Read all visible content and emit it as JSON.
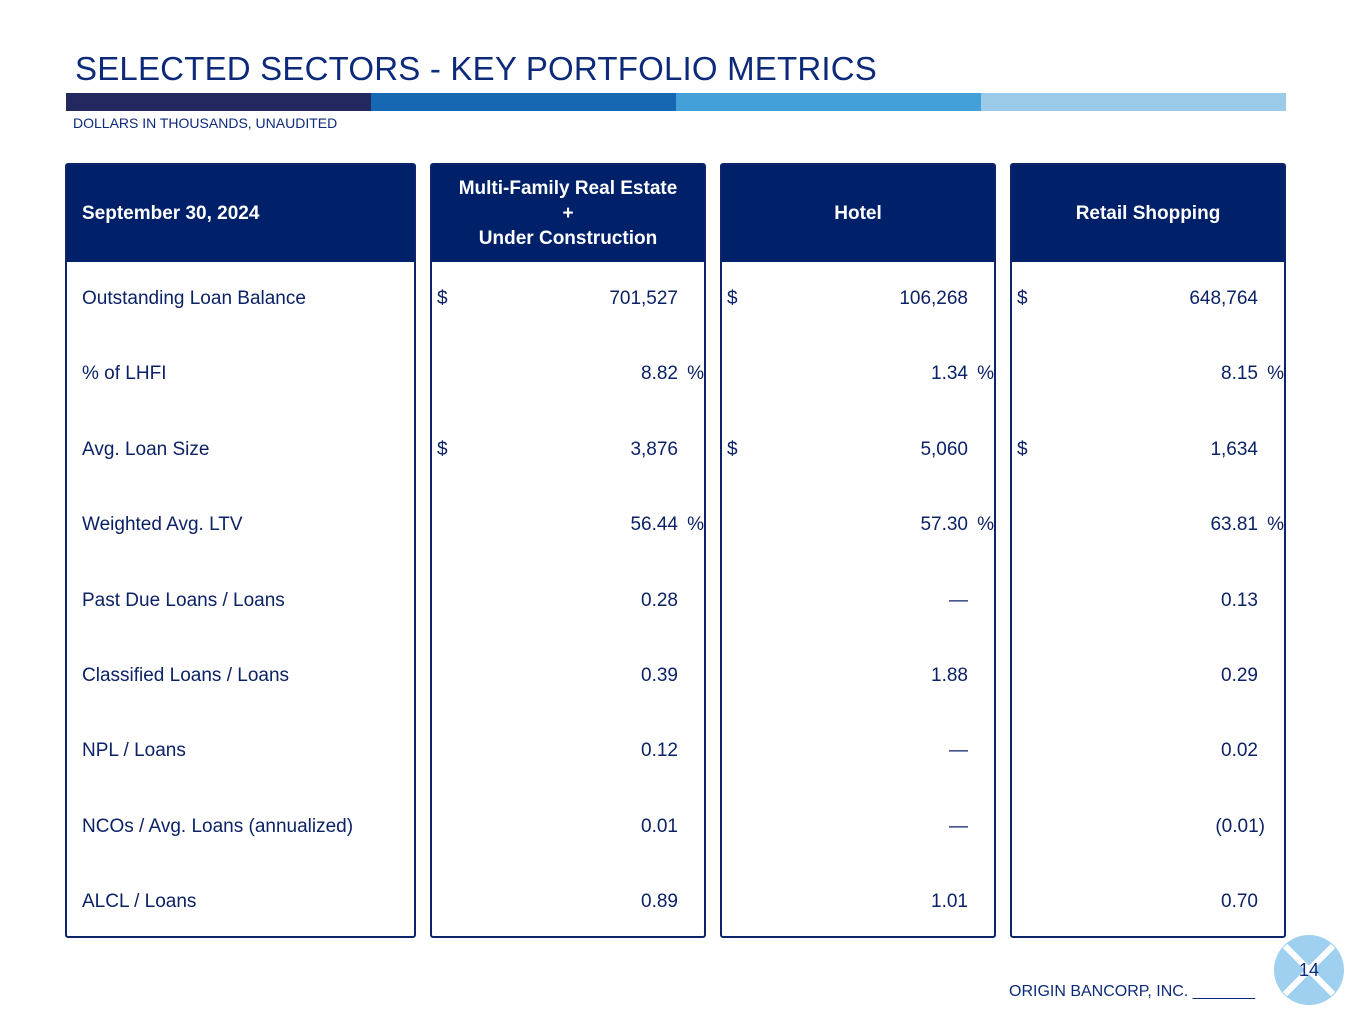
{
  "title": "SELECTED SECTORS - KEY PORTFOLIO METRICS",
  "subtitle": "DOLLARS IN THOUSANDS, UNAUDITED",
  "colors": {
    "bar": [
      "#23295e",
      "#1668b2",
      "#43a0d8",
      "#9ccbea"
    ],
    "header_bg": "#002169",
    "text": "#0b2266"
  },
  "table": {
    "date_header": "September 30, 2024",
    "row_labels": [
      "Outstanding Loan Balance",
      "% of LHFI",
      "Avg. Loan Size",
      "Weighted Avg. LTV",
      "Past Due Loans / Loans",
      "Classified Loans / Loans",
      "NPL / Loans",
      "NCOs / Avg. Loans (annualized)",
      "ALCL / Loans"
    ],
    "sectors": [
      {
        "header": [
          "Multi-Family Real Estate",
          "+",
          "Under Construction"
        ],
        "cells": [
          {
            "cur": "$",
            "val": "701,527",
            "pct": ""
          },
          {
            "cur": "",
            "val": "8.82",
            "pct": "%"
          },
          {
            "cur": "$",
            "val": "3,876",
            "pct": ""
          },
          {
            "cur": "",
            "val": "56.44",
            "pct": "%"
          },
          {
            "cur": "",
            "val": "0.28",
            "pct": ""
          },
          {
            "cur": "",
            "val": "0.39",
            "pct": ""
          },
          {
            "cur": "",
            "val": "0.12",
            "pct": ""
          },
          {
            "cur": "",
            "val": "0.01",
            "pct": ""
          },
          {
            "cur": "",
            "val": "0.89",
            "pct": ""
          }
        ]
      },
      {
        "header": [
          "Hotel"
        ],
        "cells": [
          {
            "cur": "$",
            "val": "106,268",
            "pct": ""
          },
          {
            "cur": "",
            "val": "1.34",
            "pct": "%"
          },
          {
            "cur": "$",
            "val": "5,060",
            "pct": ""
          },
          {
            "cur": "",
            "val": "57.30",
            "pct": "%"
          },
          {
            "cur": "",
            "val": "—",
            "pct": ""
          },
          {
            "cur": "",
            "val": "1.88",
            "pct": ""
          },
          {
            "cur": "",
            "val": "—",
            "pct": ""
          },
          {
            "cur": "",
            "val": "—",
            "pct": ""
          },
          {
            "cur": "",
            "val": "1.01",
            "pct": ""
          }
        ]
      },
      {
        "header": [
          "Retail Shopping"
        ],
        "cells": [
          {
            "cur": "$",
            "val": "648,764",
            "pct": ""
          },
          {
            "cur": "",
            "val": "8.15",
            "pct": "%"
          },
          {
            "cur": "$",
            "val": "1,634",
            "pct": ""
          },
          {
            "cur": "",
            "val": "63.81",
            "pct": "%"
          },
          {
            "cur": "",
            "val": "0.13",
            "pct": ""
          },
          {
            "cur": "",
            "val": "0.29",
            "pct": ""
          },
          {
            "cur": "",
            "val": "0.02",
            "pct": ""
          },
          {
            "cur": "",
            "val": "(0.01)",
            "pct": ""
          },
          {
            "cur": "",
            "val": "0.70",
            "pct": ""
          }
        ]
      }
    ]
  },
  "footer": {
    "company": "ORIGIN BANCORP, INC. _______",
    "page_number": "14",
    "logo_icon": "origin-x-logo-icon"
  }
}
